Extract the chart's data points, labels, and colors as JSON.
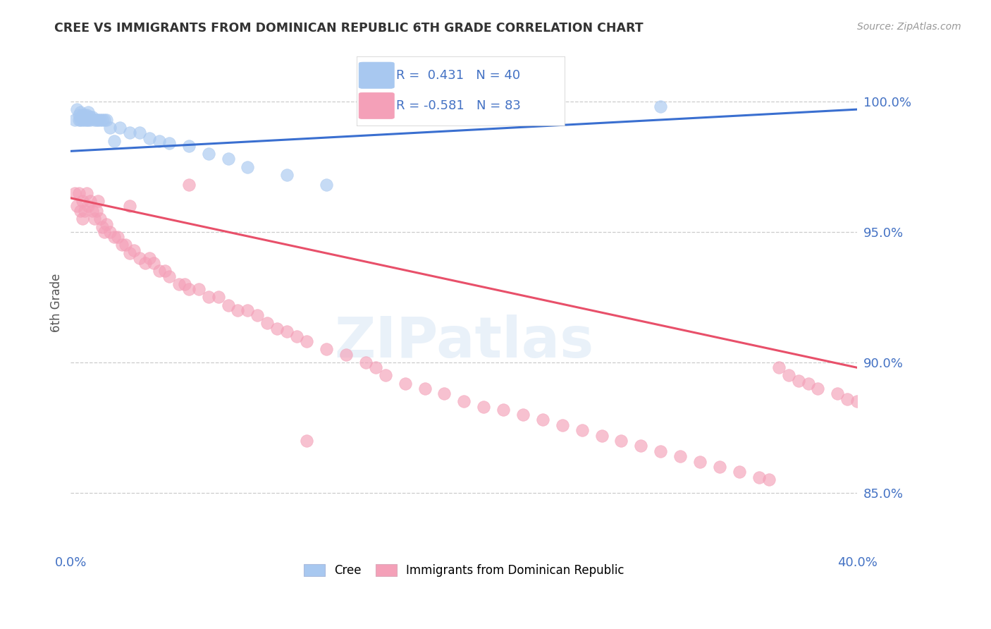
{
  "title": "CREE VS IMMIGRANTS FROM DOMINICAN REPUBLIC 6TH GRADE CORRELATION CHART",
  "source": "Source: ZipAtlas.com",
  "ylabel": "6th Grade",
  "ytick_labels": [
    "100.0%",
    "95.0%",
    "90.0%",
    "85.0%"
  ],
  "ytick_values": [
    1.0,
    0.95,
    0.9,
    0.85
  ],
  "xlim": [
    0.0,
    0.4
  ],
  "ylim": [
    0.828,
    1.018
  ],
  "legend_blue_label": "Cree",
  "legend_pink_label": "Immigrants from Dominican Republic",
  "r_blue": 0.431,
  "n_blue": 40,
  "r_pink": -0.581,
  "n_pink": 83,
  "blue_color": "#A8C8F0",
  "pink_color": "#F4A0B8",
  "blue_line_color": "#3A6FD0",
  "pink_line_color": "#E8506A",
  "title_color": "#333333",
  "axis_label_color": "#555555",
  "tick_label_color": "#4472C4",
  "source_color": "#999999",
  "grid_color": "#CCCCCC",
  "blue_scatter_x": [
    0.002,
    0.003,
    0.004,
    0.004,
    0.005,
    0.005,
    0.005,
    0.006,
    0.006,
    0.007,
    0.007,
    0.008,
    0.008,
    0.009,
    0.009,
    0.01,
    0.01,
    0.011,
    0.012,
    0.013,
    0.014,
    0.015,
    0.016,
    0.017,
    0.018,
    0.02,
    0.022,
    0.025,
    0.03,
    0.035,
    0.04,
    0.045,
    0.05,
    0.06,
    0.07,
    0.08,
    0.09,
    0.11,
    0.13,
    0.3
  ],
  "blue_scatter_y": [
    0.993,
    0.997,
    0.993,
    0.995,
    0.993,
    0.994,
    0.996,
    0.993,
    0.995,
    0.993,
    0.995,
    0.993,
    0.995,
    0.993,
    0.996,
    0.993,
    0.994,
    0.994,
    0.993,
    0.993,
    0.993,
    0.993,
    0.993,
    0.993,
    0.993,
    0.99,
    0.985,
    0.99,
    0.988,
    0.988,
    0.986,
    0.985,
    0.984,
    0.983,
    0.98,
    0.978,
    0.975,
    0.972,
    0.968,
    0.998
  ],
  "pink_scatter_x": [
    0.002,
    0.003,
    0.004,
    0.005,
    0.006,
    0.006,
    0.007,
    0.008,
    0.009,
    0.01,
    0.011,
    0.012,
    0.013,
    0.014,
    0.015,
    0.016,
    0.017,
    0.018,
    0.02,
    0.022,
    0.024,
    0.026,
    0.028,
    0.03,
    0.032,
    0.035,
    0.038,
    0.04,
    0.042,
    0.045,
    0.048,
    0.05,
    0.055,
    0.058,
    0.06,
    0.065,
    0.07,
    0.075,
    0.08,
    0.085,
    0.09,
    0.095,
    0.1,
    0.105,
    0.11,
    0.115,
    0.12,
    0.13,
    0.14,
    0.15,
    0.155,
    0.16,
    0.17,
    0.18,
    0.19,
    0.2,
    0.21,
    0.22,
    0.23,
    0.24,
    0.25,
    0.26,
    0.27,
    0.28,
    0.29,
    0.3,
    0.31,
    0.32,
    0.33,
    0.34,
    0.35,
    0.355,
    0.36,
    0.365,
    0.37,
    0.375,
    0.38,
    0.39,
    0.395,
    0.4,
    0.03,
    0.06,
    0.12
  ],
  "pink_scatter_y": [
    0.965,
    0.96,
    0.965,
    0.958,
    0.962,
    0.955,
    0.958,
    0.965,
    0.96,
    0.962,
    0.958,
    0.955,
    0.958,
    0.962,
    0.955,
    0.952,
    0.95,
    0.953,
    0.95,
    0.948,
    0.948,
    0.945,
    0.945,
    0.942,
    0.943,
    0.94,
    0.938,
    0.94,
    0.938,
    0.935,
    0.935,
    0.933,
    0.93,
    0.93,
    0.928,
    0.928,
    0.925,
    0.925,
    0.922,
    0.92,
    0.92,
    0.918,
    0.915,
    0.913,
    0.912,
    0.91,
    0.908,
    0.905,
    0.903,
    0.9,
    0.898,
    0.895,
    0.892,
    0.89,
    0.888,
    0.885,
    0.883,
    0.882,
    0.88,
    0.878,
    0.876,
    0.874,
    0.872,
    0.87,
    0.868,
    0.866,
    0.864,
    0.862,
    0.86,
    0.858,
    0.856,
    0.855,
    0.898,
    0.895,
    0.893,
    0.892,
    0.89,
    0.888,
    0.886,
    0.885,
    0.96,
    0.968,
    0.87
  ],
  "blue_trend_x": [
    0.0,
    0.4
  ],
  "blue_trend_y": [
    0.981,
    0.997
  ],
  "pink_trend_x": [
    0.0,
    0.4
  ],
  "pink_trend_y": [
    0.963,
    0.898
  ]
}
